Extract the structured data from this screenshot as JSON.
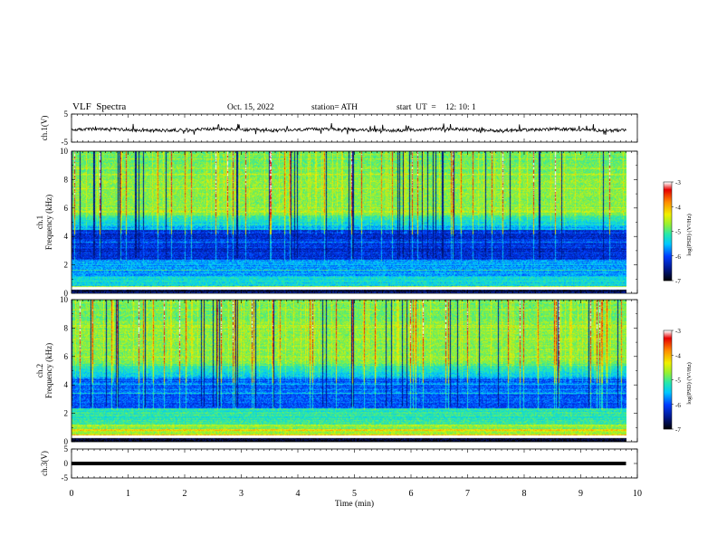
{
  "header": {
    "title": "VLF  Spectra",
    "date": "Oct. 15, 2022",
    "station": "station= ATH",
    "start_label": "start  UT  =",
    "start_time": "12: 10: 1"
  },
  "colors": {
    "spectrum_scale": [
      "#000000",
      "#001890",
      "#0050ff",
      "#00d8ff",
      "#30e8a0",
      "#a8f030",
      "#f0f000",
      "#ff9000",
      "#f00000",
      "#ffffff"
    ],
    "trace": "#000000"
  },
  "chart_data": [
    {
      "type": "line",
      "name": "ch1-waveform",
      "ylabel": "ch.1(V)",
      "ylim": [
        -5,
        5
      ],
      "yticks": [
        "5",
        "-5"
      ],
      "x_range_min": [
        0,
        9.8
      ],
      "description_values": "noisy broadband trace centered near -0.5 V with spikes to about ±2 V"
    },
    {
      "type": "heatmap",
      "name": "ch1-spectrogram",
      "ylabel_line1": "ch.1",
      "ylabel_line2": "Frequency  (kHz)",
      "ylim": [
        0,
        10
      ],
      "yticks": [
        "0",
        "2",
        "4",
        "6",
        "8",
        "10"
      ],
      "colorbar": {
        "label": "log(PSD) (V²/Hz)",
        "range": [
          -7,
          -3
        ],
        "ticks": [
          "-3",
          "-4",
          "-5",
          "-6",
          "-7"
        ]
      }
    },
    {
      "type": "heatmap",
      "name": "ch2-spectrogram",
      "ylabel_line1": "ch.2",
      "ylabel_line2": "Frequency  (kHz)",
      "ylim": [
        0,
        10
      ],
      "yticks": [
        "0",
        "2",
        "4",
        "6",
        "8",
        "10"
      ],
      "colorbar": {
        "label": "log(PSD) (V²/Hz)",
        "range": [
          -7,
          -3
        ],
        "ticks": [
          "-3",
          "-4",
          "-5",
          "-6",
          "-7"
        ]
      }
    },
    {
      "type": "line",
      "name": "ch3-waveform",
      "ylabel": "ch.3(V)",
      "ylim": [
        -5,
        5
      ],
      "yticks": [
        "5",
        "0",
        "-5"
      ],
      "constant_level": 0,
      "x_range_min": [
        0,
        9.8
      ]
    }
  ],
  "xaxis": {
    "label": "Time  (min)",
    "range": [
      0,
      10
    ],
    "ticks": [
      "0",
      "1",
      "2",
      "3",
      "4",
      "5",
      "6",
      "7",
      "8",
      "9",
      "10"
    ]
  }
}
